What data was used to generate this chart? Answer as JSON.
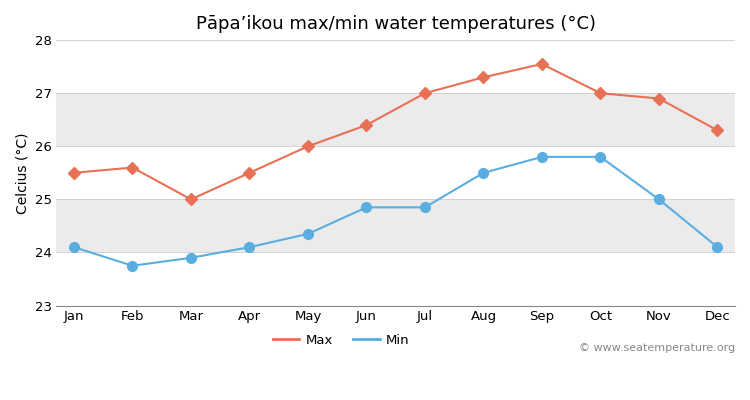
{
  "title": "Pāpaʼikou max/min water temperatures (°C)",
  "ylabel": "Celcius (°C)",
  "months": [
    "Jan",
    "Feb",
    "Mar",
    "Apr",
    "May",
    "Jun",
    "Jul",
    "Aug",
    "Sep",
    "Oct",
    "Nov",
    "Dec"
  ],
  "max_temps": [
    25.5,
    25.6,
    25.0,
    25.5,
    26.0,
    26.4,
    27.0,
    27.3,
    27.55,
    27.0,
    26.9,
    26.3
  ],
  "min_temps": [
    24.1,
    23.75,
    23.9,
    24.1,
    24.35,
    24.85,
    24.85,
    25.5,
    25.8,
    25.8,
    25.0,
    24.1
  ],
  "max_color": "#e87055",
  "min_color": "#5aade0",
  "fig_bg_color": "#ffffff",
  "plot_bg_color": "#ffffff",
  "band_colors": [
    "#ffffff",
    "#ebebeb"
  ],
  "ylim": [
    23,
    28
  ],
  "yticks": [
    23,
    24,
    25,
    26,
    27,
    28
  ],
  "watermark": "© www.seatemperature.org",
  "legend_max": "Max",
  "legend_min": "Min",
  "title_fontsize": 13,
  "axis_fontsize": 10,
  "tick_fontsize": 9.5,
  "watermark_fontsize": 8
}
